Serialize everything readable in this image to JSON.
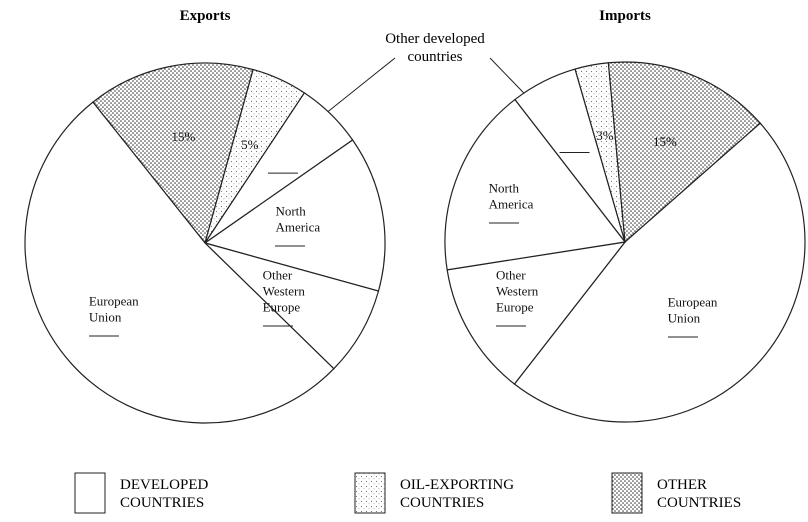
{
  "chart_data": [
    {
      "type": "pie",
      "title": "Exports",
      "categories": [
        null,
        null,
        null,
        "North America",
        "Other Western Europe",
        "European Union"
      ],
      "values": [
        15,
        5,
        6,
        14,
        8,
        52
      ],
      "value_labels": [
        "15%",
        "5%",
        null,
        null,
        null,
        null
      ],
      "groups": [
        2,
        1,
        0,
        0,
        0,
        0
      ]
    },
    {
      "type": "pie",
      "title": "Imports",
      "categories": [
        null,
        null,
        null,
        "European Union",
        "Other Western Europe",
        "North America"
      ],
      "values": [
        6,
        3,
        15,
        47,
        12,
        17
      ],
      "value_labels": [
        null,
        "3%",
        "15%",
        null,
        null,
        null
      ],
      "groups": [
        0,
        1,
        2,
        0,
        0,
        0
      ]
    }
  ],
  "annotations": [
    "Other developed countries"
  ],
  "legend": {
    "entries": [
      {
        "name": "DEVELOPED COUNTRIES",
        "fill": "blank"
      },
      {
        "name": "OIL-EXPORTING COUNTRIES",
        "fill": "sparse-dots"
      },
      {
        "name": "OTHER COUNTRIES",
        "fill": "dense-dots"
      }
    ]
  }
}
